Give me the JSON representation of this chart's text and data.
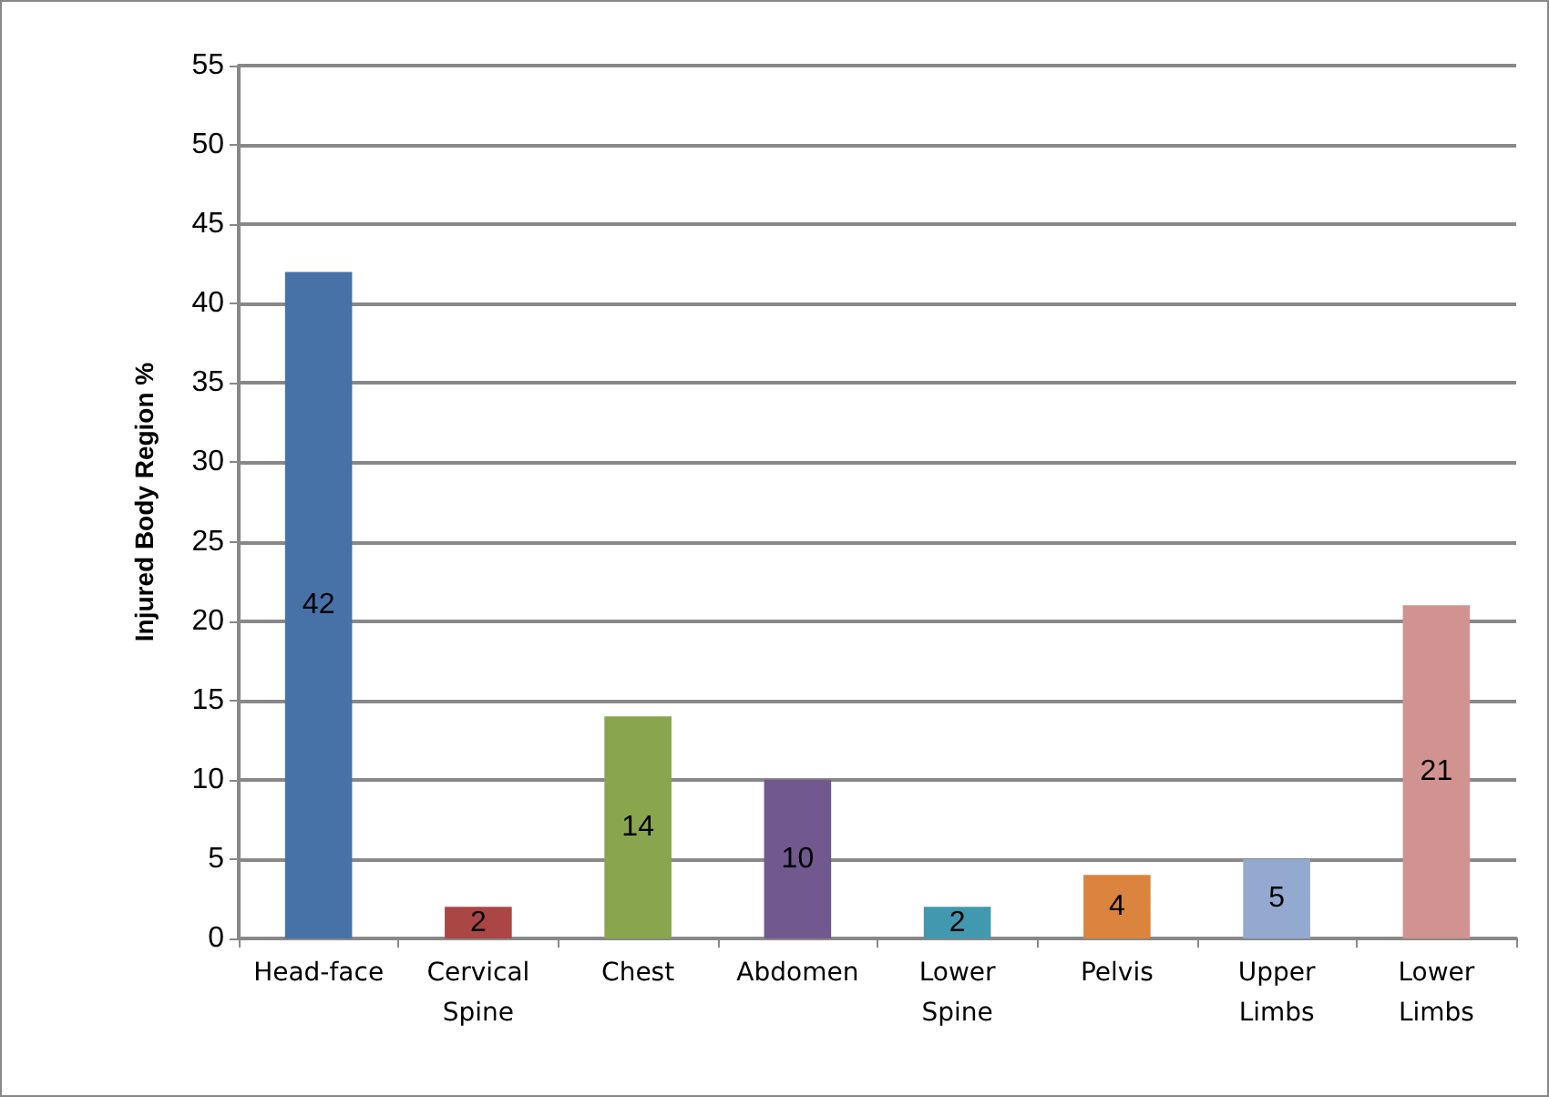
{
  "chart_data": {
    "type": "bar",
    "ylabel": "Injured Body Region %",
    "categories": [
      "Head-face",
      "Cervical\nSpine",
      "Chest",
      "Abdomen",
      "Lower\nSpine",
      "Pelvis",
      "Upper\nLimbs",
      "Lower\nLimbs"
    ],
    "values": [
      42,
      2,
      14,
      10,
      2,
      4,
      5,
      21
    ],
    "colors": [
      "#4672a8",
      "#aa4643",
      "#89a54e",
      "#71588f",
      "#4198af",
      "#db843d",
      "#93a9cf",
      "#d19392"
    ],
    "ylim": [
      0,
      55
    ],
    "yticks": [
      0,
      5,
      10,
      15,
      20,
      25,
      30,
      35,
      40,
      45,
      50,
      55
    ],
    "grid": "y",
    "data_labels": true
  }
}
